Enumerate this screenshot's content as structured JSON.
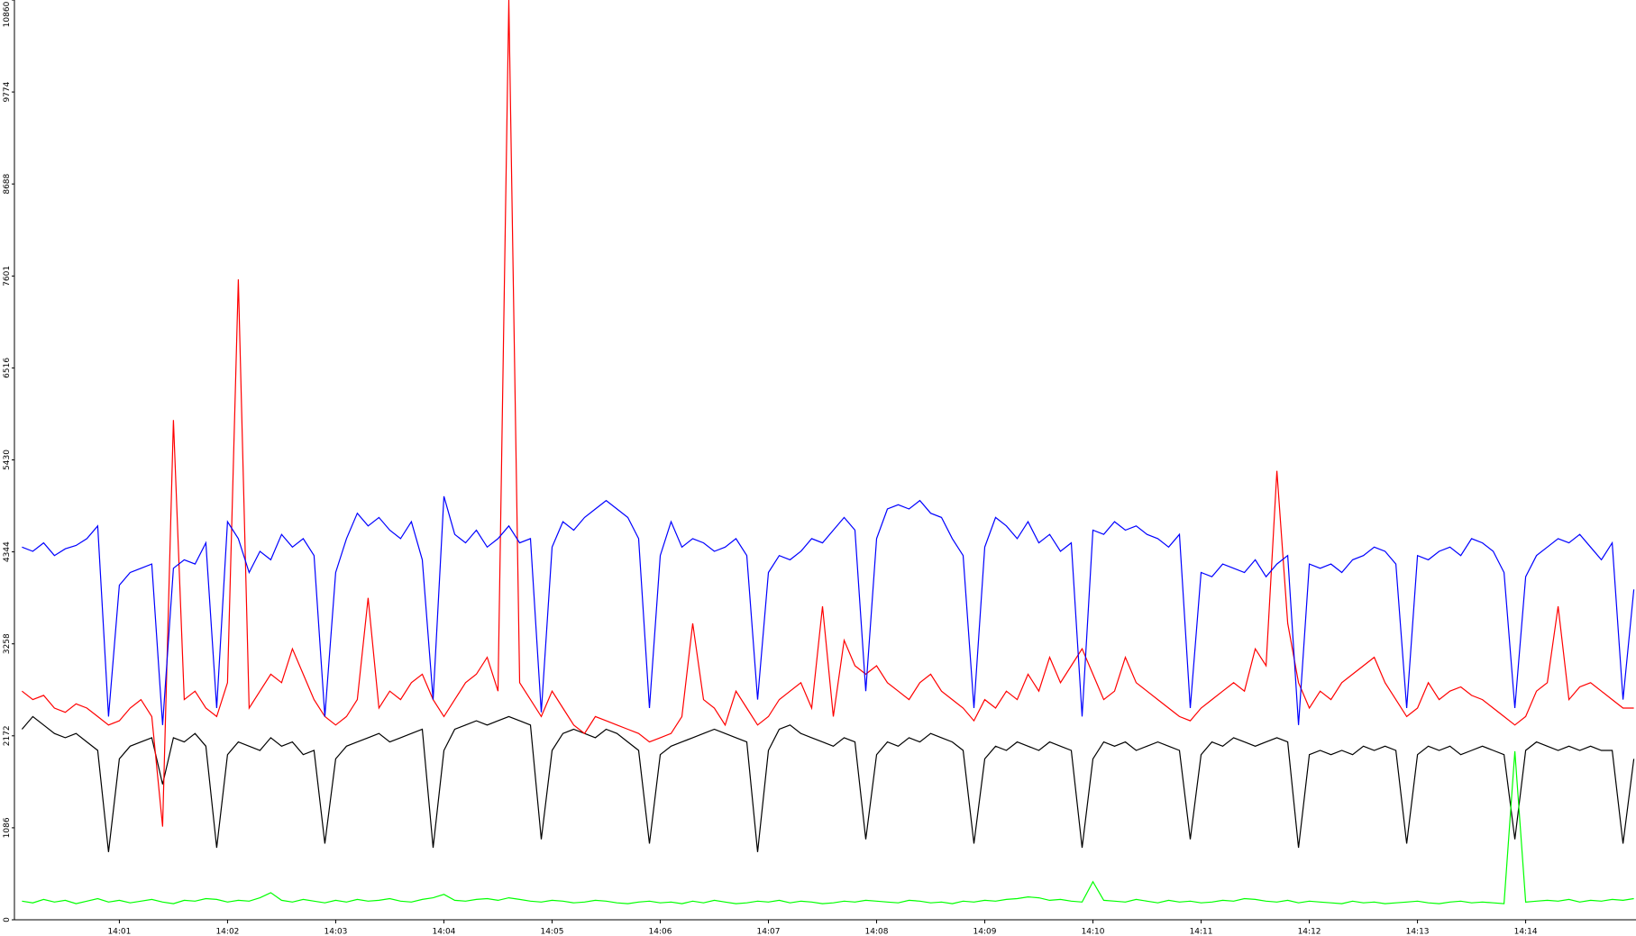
{
  "chart_data": {
    "type": "line",
    "x": [
      0.1,
      0.2,
      0.3,
      0.4,
      0.5,
      0.6,
      0.7,
      0.8,
      0.9,
      1.0,
      1.1,
      1.2,
      1.3,
      1.4,
      1.5,
      1.6,
      1.7,
      1.8,
      1.9,
      2.0,
      2.1,
      2.2,
      2.3,
      2.4,
      2.5,
      2.6,
      2.7,
      2.8,
      2.9,
      3.0,
      3.1,
      3.2,
      3.3,
      3.4,
      3.5,
      3.6,
      3.7,
      3.8,
      3.9,
      4.0,
      4.1,
      4.2,
      4.3,
      4.4,
      4.5,
      4.6,
      4.7,
      4.8,
      4.9,
      5.0,
      5.1,
      5.2,
      5.3,
      5.4,
      5.5,
      5.6,
      5.7,
      5.8,
      5.9,
      6.0,
      6.1,
      6.2,
      6.3,
      6.4,
      6.5,
      6.6,
      6.7,
      6.8,
      6.9,
      7.0,
      7.1,
      7.2,
      7.3,
      7.4,
      7.5,
      7.6,
      7.7,
      7.8,
      7.9,
      8.0,
      8.1,
      8.2,
      8.3,
      8.4,
      8.5,
      8.6,
      8.7,
      8.8,
      8.9,
      9.0,
      9.1,
      9.2,
      9.3,
      9.4,
      9.5,
      9.6,
      9.7,
      9.8,
      9.9,
      10.0,
      10.1,
      10.2,
      10.3,
      10.4,
      10.5,
      10.6,
      10.7,
      10.8,
      10.9,
      11.0,
      11.1,
      11.2,
      11.3,
      11.4,
      11.5,
      11.6,
      11.7,
      11.8,
      11.9,
      12.0,
      12.1,
      12.2,
      12.3,
      12.4,
      12.5,
      12.6,
      12.7,
      12.8,
      12.9,
      13.0,
      13.1,
      13.2,
      13.3,
      13.4,
      13.5,
      13.6,
      13.7,
      13.8,
      13.9,
      14.0,
      14.1,
      14.2,
      14.3,
      14.4,
      14.5,
      14.6,
      14.7,
      14.8,
      14.9,
      15.0
    ],
    "series": [
      {
        "color": "#000000",
        "values": [
          2250,
          2400,
          2300,
          2200,
          2150,
          2200,
          2100,
          2000,
          800,
          1900,
          2050,
          2100,
          2150,
          1600,
          2150,
          2100,
          2200,
          2050,
          850,
          1950,
          2100,
          2050,
          2000,
          2150,
          2050,
          2100,
          1950,
          2000,
          900,
          1900,
          2050,
          2100,
          2150,
          2200,
          2100,
          2150,
          2200,
          2250,
          850,
          2000,
          2250,
          2300,
          2350,
          2300,
          2350,
          2400,
          2350,
          2300,
          950,
          2000,
          2200,
          2250,
          2200,
          2150,
          2250,
          2200,
          2100,
          2000,
          900,
          1950,
          2050,
          2100,
          2150,
          2200,
          2250,
          2200,
          2150,
          2100,
          800,
          2000,
          2250,
          2300,
          2200,
          2150,
          2100,
          2050,
          2150,
          2100,
          950,
          1950,
          2100,
          2050,
          2150,
          2100,
          2200,
          2150,
          2100,
          2000,
          900,
          1900,
          2050,
          2000,
          2100,
          2050,
          2000,
          2100,
          2050,
          2000,
          850,
          1900,
          2100,
          2050,
          2100,
          2000,
          2050,
          2100,
          2050,
          2000,
          950,
          1950,
          2100,
          2050,
          2150,
          2100,
          2050,
          2100,
          2150,
          2100,
          850,
          1950,
          2000,
          1950,
          2000,
          1950,
          2050,
          2000,
          2050,
          2000,
          900,
          1950,
          2050,
          2000,
          2050,
          1950,
          2000,
          2050,
          2000,
          1950,
          950,
          2000,
          2100,
          2050,
          2000,
          2050,
          2000,
          2050,
          2000,
          2000,
          900,
          1900
        ]
      },
      {
        "color": "#ff0000",
        "values": [
          2700,
          2600,
          2650,
          2500,
          2450,
          2550,
          2500,
          2400,
          2300,
          2350,
          2500,
          2600,
          2400,
          1100,
          5900,
          2600,
          2700,
          2500,
          2400,
          2800,
          7560,
          2500,
          2700,
          2900,
          2800,
          3200,
          2900,
          2600,
          2400,
          2300,
          2400,
          2600,
          3800,
          2500,
          2700,
          2600,
          2800,
          2900,
          2600,
          2400,
          2600,
          2800,
          2900,
          3100,
          2700,
          10860,
          2800,
          2600,
          2400,
          2700,
          2500,
          2300,
          2200,
          2400,
          2350,
          2300,
          2250,
          2200,
          2100,
          2150,
          2200,
          2400,
          3500,
          2600,
          2500,
          2300,
          2700,
          2500,
          2300,
          2400,
          2600,
          2700,
          2800,
          2500,
          3700,
          2400,
          3300,
          3000,
          2900,
          3000,
          2800,
          2700,
          2600,
          2800,
          2900,
          2700,
          2600,
          2500,
          2350,
          2600,
          2500,
          2700,
          2600,
          2900,
          2700,
          3100,
          2800,
          3000,
          3200,
          2900,
          2600,
          2700,
          3100,
          2800,
          2700,
          2600,
          2500,
          2400,
          2350,
          2500,
          2600,
          2700,
          2800,
          2700,
          3200,
          3000,
          5300,
          3500,
          2800,
          2500,
          2700,
          2600,
          2800,
          2900,
          3000,
          3100,
          2800,
          2600,
          2400,
          2500,
          2800,
          2600,
          2700,
          2750,
          2650,
          2600,
          2500,
          2400,
          2300,
          2400,
          2700,
          2800,
          3700,
          2600,
          2750,
          2800,
          2700,
          2600,
          2500,
          2500
        ]
      },
      {
        "color": "#0000ff",
        "values": [
          4400,
          4350,
          4450,
          4300,
          4380,
          4420,
          4500,
          4650,
          2400,
          3950,
          4100,
          4150,
          4200,
          2300,
          4150,
          4250,
          4200,
          4450,
          2500,
          4700,
          4500,
          4100,
          4350,
          4250,
          4550,
          4400,
          4500,
          4300,
          2400,
          4100,
          4500,
          4800,
          4650,
          4750,
          4600,
          4500,
          4700,
          4250,
          2600,
          5000,
          4550,
          4450,
          4600,
          4400,
          4500,
          4650,
          4450,
          4500,
          2450,
          4400,
          4700,
          4600,
          4750,
          4850,
          4950,
          4850,
          4750,
          4500,
          2500,
          4300,
          4700,
          4400,
          4500,
          4450,
          4350,
          4400,
          4500,
          4300,
          2600,
          4100,
          4300,
          4250,
          4350,
          4500,
          4450,
          4600,
          4750,
          4600,
          2700,
          4500,
          4850,
          4900,
          4850,
          4950,
          4800,
          4750,
          4500,
          4300,
          2500,
          4400,
          4750,
          4650,
          4500,
          4700,
          4450,
          4550,
          4350,
          4450,
          2400,
          4600,
          4550,
          4700,
          4600,
          4650,
          4550,
          4500,
          4400,
          4550,
          2500,
          4100,
          4050,
          4200,
          4150,
          4100,
          4250,
          4050,
          4200,
          4300,
          2300,
          4200,
          4150,
          4200,
          4100,
          4250,
          4300,
          4400,
          4350,
          4200,
          2500,
          4300,
          4250,
          4350,
          4400,
          4300,
          4500,
          4450,
          4350,
          4100,
          2500,
          4050,
          4300,
          4400,
          4500,
          4450,
          4550,
          4400,
          4250,
          4450,
          2600,
          3900
        ]
      },
      {
        "color": "#00ff00",
        "values": [
          220,
          200,
          240,
          210,
          230,
          190,
          220,
          250,
          210,
          230,
          200,
          220,
          240,
          210,
          190,
          230,
          220,
          250,
          240,
          210,
          230,
          220,
          260,
          320,
          230,
          210,
          240,
          220,
          200,
          230,
          210,
          240,
          220,
          230,
          250,
          220,
          210,
          240,
          260,
          300,
          230,
          220,
          240,
          250,
          230,
          260,
          240,
          220,
          210,
          230,
          220,
          200,
          210,
          230,
          220,
          200,
          190,
          210,
          220,
          200,
          210,
          190,
          220,
          200,
          230,
          210,
          190,
          200,
          220,
          210,
          230,
          200,
          220,
          210,
          190,
          200,
          220,
          210,
          230,
          220,
          210,
          200,
          230,
          220,
          200,
          210,
          190,
          220,
          210,
          230,
          220,
          240,
          250,
          270,
          260,
          230,
          240,
          220,
          210,
          450,
          230,
          220,
          210,
          240,
          220,
          200,
          230,
          210,
          220,
          200,
          210,
          230,
          220,
          250,
          240,
          220,
          210,
          230,
          200,
          220,
          210,
          200,
          190,
          220,
          200,
          210,
          190,
          200,
          210,
          220,
          200,
          190,
          210,
          220,
          200,
          210,
          200,
          190,
          1990,
          210,
          220,
          230,
          220,
          240,
          210,
          230,
          220,
          240,
          230,
          250
        ]
      }
    ],
    "xlim": [
      0.03,
      15.02
    ],
    "ylim": [
      0,
      10860
    ],
    "xticks": [
      {
        "value": 1,
        "label": "14:01"
      },
      {
        "value": 2,
        "label": "14:02"
      },
      {
        "value": 3,
        "label": "14:03"
      },
      {
        "value": 4,
        "label": "14:04"
      },
      {
        "value": 5,
        "label": "14:05"
      },
      {
        "value": 6,
        "label": "14:06"
      },
      {
        "value": 7,
        "label": "14:07"
      },
      {
        "value": 8,
        "label": "14:08"
      },
      {
        "value": 9,
        "label": "14:09"
      },
      {
        "value": 10,
        "label": "14:10"
      },
      {
        "value": 11,
        "label": "14:11"
      },
      {
        "value": 12,
        "label": "14:12"
      },
      {
        "value": 13,
        "label": "14:13"
      },
      {
        "value": 14,
        "label": "14:14"
      }
    ],
    "yticks": [
      0,
      1086,
      2172,
      3258,
      4344,
      5430,
      6516,
      7601,
      8688,
      9774,
      10860
    ]
  }
}
